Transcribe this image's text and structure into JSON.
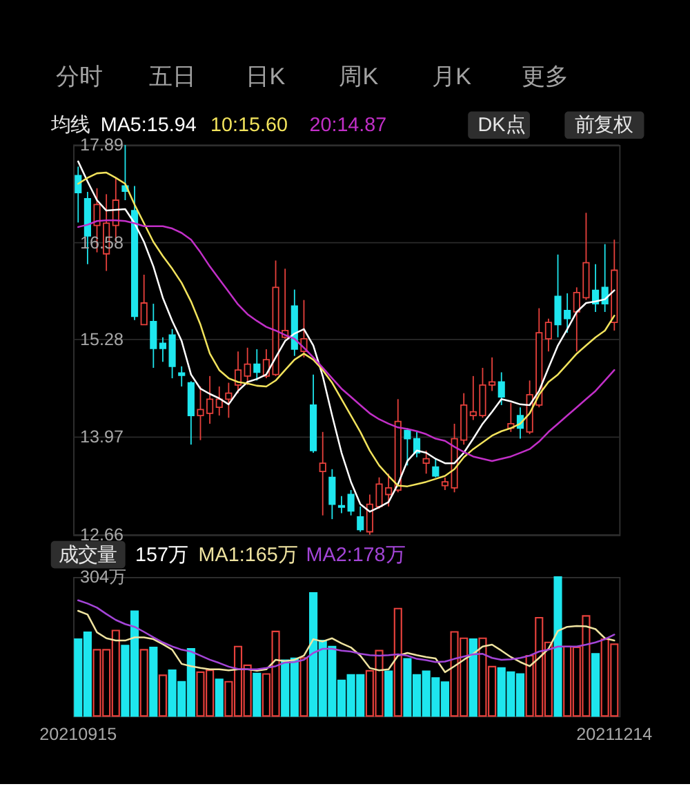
{
  "chart_data": [
    {
      "type": "other",
      "annotations": [
        "分时",
        "五日",
        "日K",
        "周K",
        "月K",
        "更多"
      ]
    },
    {
      "type": "candlestick",
      "legend_title": "均线",
      "legend": "top left",
      "annotations": [
        "DK点",
        "前复权"
      ],
      "categories": [
        "20210915",
        null,
        null,
        null,
        null,
        null,
        null,
        null,
        null,
        null,
        null,
        null,
        null,
        null,
        null,
        null,
        null,
        null,
        null,
        null,
        null,
        null,
        null,
        null,
        null,
        null,
        null,
        null,
        null,
        null,
        null,
        null,
        null,
        null,
        null,
        null,
        null,
        null,
        null,
        null,
        null,
        null,
        null,
        null,
        null,
        null,
        null,
        null,
        null,
        null,
        null,
        null,
        null,
        null,
        null,
        null,
        null,
        "20211214"
      ],
      "ohlc": [
        [
          17.48,
          17.6,
          16.85,
          17.25
        ],
        [
          17.17,
          17.26,
          16.29,
          16.67
        ],
        [
          16.81,
          17.31,
          16.45,
          17.09
        ],
        [
          16.43,
          17.23,
          16.2,
          16.84
        ],
        [
          16.81,
          17.45,
          16.59,
          17.15
        ],
        [
          17.34,
          17.89,
          17.15,
          17.27
        ],
        [
          17.01,
          17.34,
          15.54,
          15.59
        ],
        [
          15.48,
          16.15,
          15.48,
          15.77
        ],
        [
          15.52,
          15.76,
          14.9,
          15.16
        ],
        [
          15.23,
          15.31,
          14.98,
          15.16
        ],
        [
          15.34,
          15.42,
          14.76,
          14.92
        ],
        [
          14.83,
          14.92,
          14.65,
          14.8
        ],
        [
          14.7,
          14.72,
          13.87,
          14.26
        ],
        [
          14.26,
          14.65,
          13.93,
          14.34
        ],
        [
          14.29,
          14.79,
          14.15,
          14.48
        ],
        [
          14.37,
          14.65,
          14.26,
          14.48
        ],
        [
          14.48,
          14.7,
          14.23,
          14.56
        ],
        [
          14.67,
          15.12,
          14.56,
          14.87
        ],
        [
          14.79,
          15.17,
          14.67,
          14.95
        ],
        [
          14.95,
          15.15,
          14.73,
          14.84
        ],
        [
          14.79,
          15.15,
          14.76,
          15.01
        ],
        [
          14.81,
          16.34,
          14.79,
          15.98
        ],
        [
          15.31,
          16.23,
          15.29,
          15.4
        ],
        [
          15.73,
          15.95,
          15.06,
          15.15
        ],
        [
          15.12,
          15.81,
          15.04,
          15.29
        ],
        [
          14.4,
          14.81,
          13.76,
          13.79
        ],
        [
          13.51,
          14.04,
          12.92,
          13.62
        ],
        [
          13.43,
          13.54,
          12.87,
          13.07
        ],
        [
          13.05,
          13.18,
          12.95,
          13.03
        ],
        [
          13.2,
          13.26,
          12.92,
          12.98
        ],
        [
          12.9,
          13.04,
          12.7,
          12.73
        ],
        [
          12.7,
          13.2,
          12.66,
          13.07
        ],
        [
          13.04,
          13.43,
          13.01,
          13.34
        ],
        [
          13.2,
          13.48,
          13.04,
          13.29
        ],
        [
          13.26,
          14.48,
          13.23,
          14.18
        ],
        [
          14.06,
          14.09,
          13.59,
          13.95
        ],
        [
          13.95,
          14.04,
          13.7,
          13.76
        ],
        [
          13.62,
          13.79,
          13.48,
          13.68
        ],
        [
          13.57,
          13.68,
          13.43,
          13.45
        ],
        [
          13.32,
          13.43,
          13.26,
          13.37
        ],
        [
          13.29,
          14.15,
          13.23,
          13.95
        ],
        [
          13.93,
          14.56,
          13.87,
          14.4
        ],
        [
          14.26,
          14.79,
          14.2,
          14.31
        ],
        [
          14.26,
          14.9,
          14.23,
          14.67
        ],
        [
          14.67,
          15.04,
          14.59,
          14.71
        ],
        [
          14.71,
          14.84,
          14.4,
          14.51
        ],
        [
          14.09,
          14.43,
          14.04,
          14.15
        ],
        [
          14.26,
          14.37,
          13.95,
          14.09
        ],
        [
          14.04,
          14.73,
          14.01,
          14.54
        ],
        [
          14.4,
          15.7,
          14.37,
          15.37
        ],
        [
          15.29,
          15.56,
          15.12,
          15.51
        ],
        [
          15.86,
          16.42,
          15.31,
          15.48
        ],
        [
          15.67,
          15.9,
          15.37,
          15.56
        ],
        [
          15.65,
          15.98,
          15.12,
          15.91
        ],
        [
          15.84,
          16.98,
          15.81,
          16.31
        ],
        [
          15.94,
          16.29,
          15.65,
          15.76
        ],
        [
          15.98,
          16.56,
          15.65,
          15.76
        ],
        [
          15.51,
          16.62,
          15.4,
          16.21
        ]
      ],
      "colors": [
        "#1ee6ee",
        "#1ee6ee",
        "#e8413c",
        "#e8413c",
        "#e8413c",
        "#1ee6ee",
        "#1ee6ee",
        "#e8413c",
        "#1ee6ee",
        "#1ee6ee",
        "#1ee6ee",
        "#1ee6ee",
        "#1ee6ee",
        "#e8413c",
        "#e8413c",
        "#e8413c",
        "#e8413c",
        "#e8413c",
        "#e8413c",
        "#1ee6ee",
        "#e8413c",
        "#e8413c",
        "#e8413c",
        "#1ee6ee",
        "#e8413c",
        "#1ee6ee",
        "#e8413c",
        "#1ee6ee",
        "#1ee6ee",
        "#1ee6ee",
        "#1ee6ee",
        "#e8413c",
        "#e8413c",
        "#e8413c",
        "#e8413c",
        "#1ee6ee",
        "#1ee6ee",
        "#e8413c",
        "#1ee6ee",
        "#e8413c",
        "#e8413c",
        "#e8413c",
        "#e8413c",
        "#e8413c",
        "#e8413c",
        "#1ee6ee",
        "#e8413c",
        "#1ee6ee",
        "#e8413c",
        "#e8413c",
        "#e8413c",
        "#1ee6ee",
        "#1ee6ee",
        "#e8413c",
        "#e8413c",
        "#1ee6ee",
        "#1ee6ee",
        "#e8413c"
      ],
      "series": [
        {
          "name": "MA5:15.94",
          "type": "line",
          "color": "#ffffff",
          "values": [
            17.67,
            17.4,
            17.15,
            17.01,
            17.02,
            17.03,
            16.84,
            16.59,
            16.26,
            15.84,
            15.53,
            15.26,
            14.81,
            14.62,
            14.55,
            14.49,
            14.41,
            14.59,
            14.71,
            14.75,
            14.81,
            15.04,
            15.26,
            15.36,
            15.42,
            15.2,
            14.79,
            14.26,
            13.76,
            13.37,
            13.07,
            12.97,
            13.03,
            13.1,
            13.34,
            13.65,
            13.79,
            13.76,
            13.68,
            13.62,
            13.62,
            13.76,
            13.95,
            14.15,
            14.31,
            14.48,
            14.45,
            14.41,
            14.4,
            14.59,
            14.9,
            15.2,
            15.42,
            15.65,
            15.77,
            15.79,
            15.82,
            15.94
          ]
        },
        {
          "name": "10:15.60",
          "type": "line",
          "color": "#f2e35c",
          "values": [
            17.37,
            17.45,
            17.51,
            17.52,
            17.45,
            17.37,
            17.09,
            16.84,
            16.59,
            16.4,
            16.23,
            16.04,
            15.79,
            15.48,
            15.09,
            14.87,
            14.76,
            14.71,
            14.69,
            14.66,
            14.65,
            14.73,
            14.87,
            15.01,
            15.09,
            15.01,
            14.87,
            14.7,
            14.48,
            14.26,
            14.04,
            13.79,
            13.59,
            13.45,
            13.32,
            13.31,
            13.34,
            13.37,
            13.41,
            13.45,
            13.54,
            13.7,
            13.81,
            13.9,
            13.99,
            14.05,
            14.09,
            14.15,
            14.29,
            14.54,
            14.71,
            14.81,
            14.95,
            15.09,
            15.2,
            15.31,
            15.4,
            15.6
          ]
        },
        {
          "name": "20:14.87",
          "type": "line",
          "color": "#c22fc8",
          "values": [
            16.79,
            16.82,
            16.87,
            16.88,
            16.88,
            16.87,
            16.84,
            16.8,
            16.8,
            16.8,
            16.77,
            16.71,
            16.62,
            16.45,
            16.26,
            16.09,
            15.92,
            15.75,
            15.62,
            15.53,
            15.45,
            15.4,
            15.34,
            15.29,
            15.17,
            15.04,
            14.9,
            14.76,
            14.62,
            14.51,
            14.4,
            14.29,
            14.21,
            14.15,
            14.1,
            14.08,
            14.05,
            14.01,
            13.95,
            13.92,
            13.84,
            13.77,
            13.71,
            13.68,
            13.65,
            13.68,
            13.71,
            13.76,
            13.81,
            13.91,
            14.04,
            14.15,
            14.26,
            14.37,
            14.48,
            14.59,
            14.73,
            14.87
          ]
        }
      ],
      "ylim": [
        12.66,
        17.89
      ],
      "yticks": [
        17.89,
        16.58,
        15.28,
        13.97,
        12.66
      ],
      "grid": "y",
      "tick_labels": "y"
    },
    {
      "type": "bar",
      "legend_title": "成交量",
      "legend": "top left",
      "annotations": [
        "157万"
      ],
      "categories": [
        "20210915",
        null,
        null,
        null,
        null,
        null,
        null,
        null,
        null,
        null,
        null,
        null,
        null,
        null,
        null,
        null,
        null,
        null,
        null,
        null,
        null,
        null,
        null,
        null,
        null,
        null,
        null,
        null,
        null,
        null,
        null,
        null,
        null,
        null,
        null,
        null,
        null,
        null,
        null,
        null,
        null,
        null,
        null,
        null,
        null,
        null,
        null,
        null,
        null,
        null,
        null,
        null,
        null,
        null,
        null,
        null,
        null,
        "20211214"
      ],
      "values": [
        168,
        183,
        145,
        145,
        187,
        154,
        229,
        145,
        150,
        89,
        100,
        75,
        147,
        96,
        100,
        80,
        75,
        152,
        111,
        93,
        92,
        185,
        122,
        126,
        127,
        269,
        165,
        152,
        78,
        90,
        90,
        99,
        143,
        98,
        235,
        125,
        90,
        98,
        83,
        74,
        184,
        170,
        168,
        170,
        108,
        105,
        96,
        92,
        132,
        215,
        161,
        304,
        152,
        150,
        219,
        136,
        168,
        157
      ],
      "colors": [
        "#1ee6ee",
        "#1ee6ee",
        "#e8413c",
        "#e8413c",
        "#e8413c",
        "#1ee6ee",
        "#1ee6ee",
        "#e8413c",
        "#1ee6ee",
        "#e8413c",
        "#1ee6ee",
        "#1ee6ee",
        "#1ee6ee",
        "#e8413c",
        "#e8413c",
        "#1ee6ee",
        "#e8413c",
        "#e8413c",
        "#e8413c",
        "#1ee6ee",
        "#e8413c",
        "#e8413c",
        "#1ee6ee",
        "#1ee6ee",
        "#e8413c",
        "#1ee6ee",
        "#1ee6ee",
        "#1ee6ee",
        "#1ee6ee",
        "#1ee6ee",
        "#1ee6ee",
        "#e8413c",
        "#e8413c",
        "#1ee6ee",
        "#e8413c",
        "#1ee6ee",
        "#1ee6ee",
        "#1ee6ee",
        "#1ee6ee",
        "#1ee6ee",
        "#e8413c",
        "#e8413c",
        "#1ee6ee",
        "#e8413c",
        "#e8413c",
        "#1ee6ee",
        "#1ee6ee",
        "#1ee6ee",
        "#e8413c",
        "#e8413c",
        "#e8413c",
        "#1ee6ee",
        "#e8413c",
        "#e8413c",
        "#e8413c",
        "#1ee6ee",
        "#e8413c",
        "#e8413c"
      ],
      "series": [
        {
          "name": "MA1:165万",
          "type": "line",
          "color": "#efe3a0",
          "values": [
            230,
            222,
            183,
            170,
            165,
            165,
            172,
            172,
            168,
            157,
            145,
            114,
            109,
            105,
            102,
            102,
            100,
            102,
            102,
            99,
            102,
            123,
            120,
            123,
            132,
            168,
            163,
            170,
            159,
            150,
            132,
            105,
            100,
            102,
            132,
            138,
            133,
            129,
            126,
            96,
            109,
            123,
            136,
            152,
            156,
            143,
            129,
            118,
            109,
            127,
            147,
            186,
            195,
            197,
            196,
            190,
            170,
            165
          ]
        },
        {
          "name": "MA2:178万",
          "type": "line",
          "color": "#a445d8",
          "values": [
            253,
            246,
            237,
            223,
            210,
            201,
            195,
            184,
            172,
            161,
            152,
            145,
            141,
            132,
            123,
            116,
            108,
            103,
            102,
            102,
            105,
            109,
            117,
            118,
            123,
            138,
            147,
            147,
            143,
            141,
            136,
            133,
            132,
            133,
            135,
            132,
            125,
            122,
            118,
            119,
            125,
            130,
            135,
            136,
            127,
            123,
            124,
            127,
            132,
            141,
            145,
            152,
            152,
            152,
            156,
            161,
            168,
            178
          ]
        }
      ],
      "ylim": [
        0,
        304
      ],
      "yticks": [
        {
          "value": 304,
          "label": "304万"
        }
      ]
    }
  ]
}
